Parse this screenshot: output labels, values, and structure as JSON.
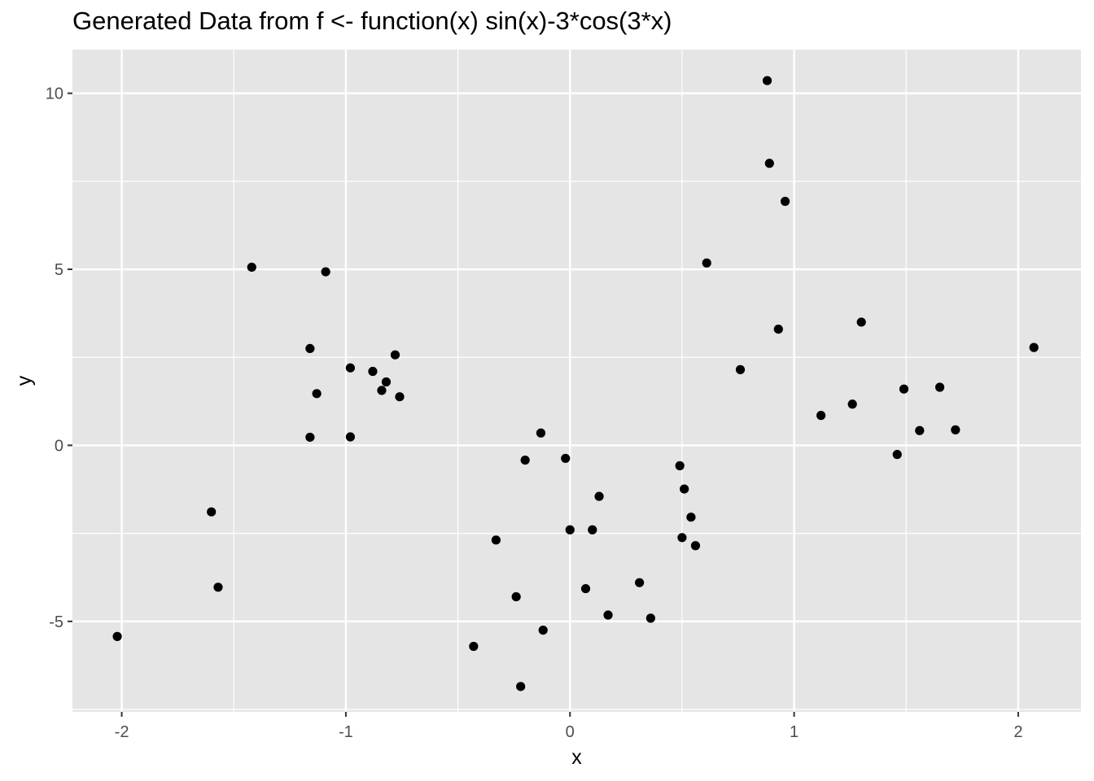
{
  "chart_data": {
    "type": "scatter",
    "title": "Generated Data from f <- function(x) sin(x)-3*cos(3*x)",
    "xlabel": "x",
    "ylabel": "y",
    "xlim": [
      -2.22,
      2.28
    ],
    "ylim": [
      -7.57,
      11.24
    ],
    "x_ticks": [
      -2,
      -1,
      0,
      1,
      2
    ],
    "y_ticks": [
      -5,
      0,
      5,
      10
    ],
    "x_tick_labels": [
      "-2",
      "-1",
      "0",
      "1",
      "2"
    ],
    "y_tick_labels": [
      "-5",
      "0",
      "5",
      "10"
    ],
    "grid": true,
    "legend": "none",
    "point_color": "#000000",
    "panel_color": "#e5e5e5",
    "grid_color": "#ffffff",
    "points": [
      {
        "x": -2.02,
        "y": -5.43
      },
      {
        "x": -1.6,
        "y": -1.89
      },
      {
        "x": -1.57,
        "y": -4.03
      },
      {
        "x": -1.42,
        "y": 5.06
      },
      {
        "x": -1.16,
        "y": 2.75
      },
      {
        "x": -1.16,
        "y": 0.23
      },
      {
        "x": -1.13,
        "y": 1.47
      },
      {
        "x": -1.09,
        "y": 4.93
      },
      {
        "x": -0.98,
        "y": 2.2
      },
      {
        "x": -0.98,
        "y": 0.24
      },
      {
        "x": -0.88,
        "y": 2.1
      },
      {
        "x": -0.84,
        "y": 1.56
      },
      {
        "x": -0.82,
        "y": 1.8
      },
      {
        "x": -0.78,
        "y": 2.57
      },
      {
        "x": -0.76,
        "y": 1.38
      },
      {
        "x": -0.43,
        "y": -5.71
      },
      {
        "x": -0.33,
        "y": -2.69
      },
      {
        "x": -0.24,
        "y": -4.3
      },
      {
        "x": -0.22,
        "y": -6.85
      },
      {
        "x": -0.2,
        "y": -0.42
      },
      {
        "x": -0.13,
        "y": 0.35
      },
      {
        "x": -0.12,
        "y": -5.25
      },
      {
        "x": -0.02,
        "y": -0.37
      },
      {
        "x": 0.0,
        "y": -2.4
      },
      {
        "x": 0.07,
        "y": -4.07
      },
      {
        "x": 0.1,
        "y": -2.4
      },
      {
        "x": 0.13,
        "y": -1.45
      },
      {
        "x": 0.17,
        "y": -4.82
      },
      {
        "x": 0.31,
        "y": -3.9
      },
      {
        "x": 0.36,
        "y": -4.91
      },
      {
        "x": 0.49,
        "y": -0.58
      },
      {
        "x": 0.5,
        "y": -2.62
      },
      {
        "x": 0.51,
        "y": -1.24
      },
      {
        "x": 0.54,
        "y": -2.04
      },
      {
        "x": 0.56,
        "y": -2.85
      },
      {
        "x": 0.61,
        "y": 5.18
      },
      {
        "x": 0.76,
        "y": 2.15
      },
      {
        "x": 0.88,
        "y": 10.36
      },
      {
        "x": 0.89,
        "y": 8.01
      },
      {
        "x": 0.93,
        "y": 3.3
      },
      {
        "x": 0.96,
        "y": 6.93
      },
      {
        "x": 1.12,
        "y": 0.85
      },
      {
        "x": 1.26,
        "y": 1.17
      },
      {
        "x": 1.3,
        "y": 3.5
      },
      {
        "x": 1.46,
        "y": -0.26
      },
      {
        "x": 1.49,
        "y": 1.6
      },
      {
        "x": 1.56,
        "y": 0.42
      },
      {
        "x": 1.65,
        "y": 1.65
      },
      {
        "x": 1.72,
        "y": 0.44
      },
      {
        "x": 2.07,
        "y": 2.78
      }
    ]
  }
}
